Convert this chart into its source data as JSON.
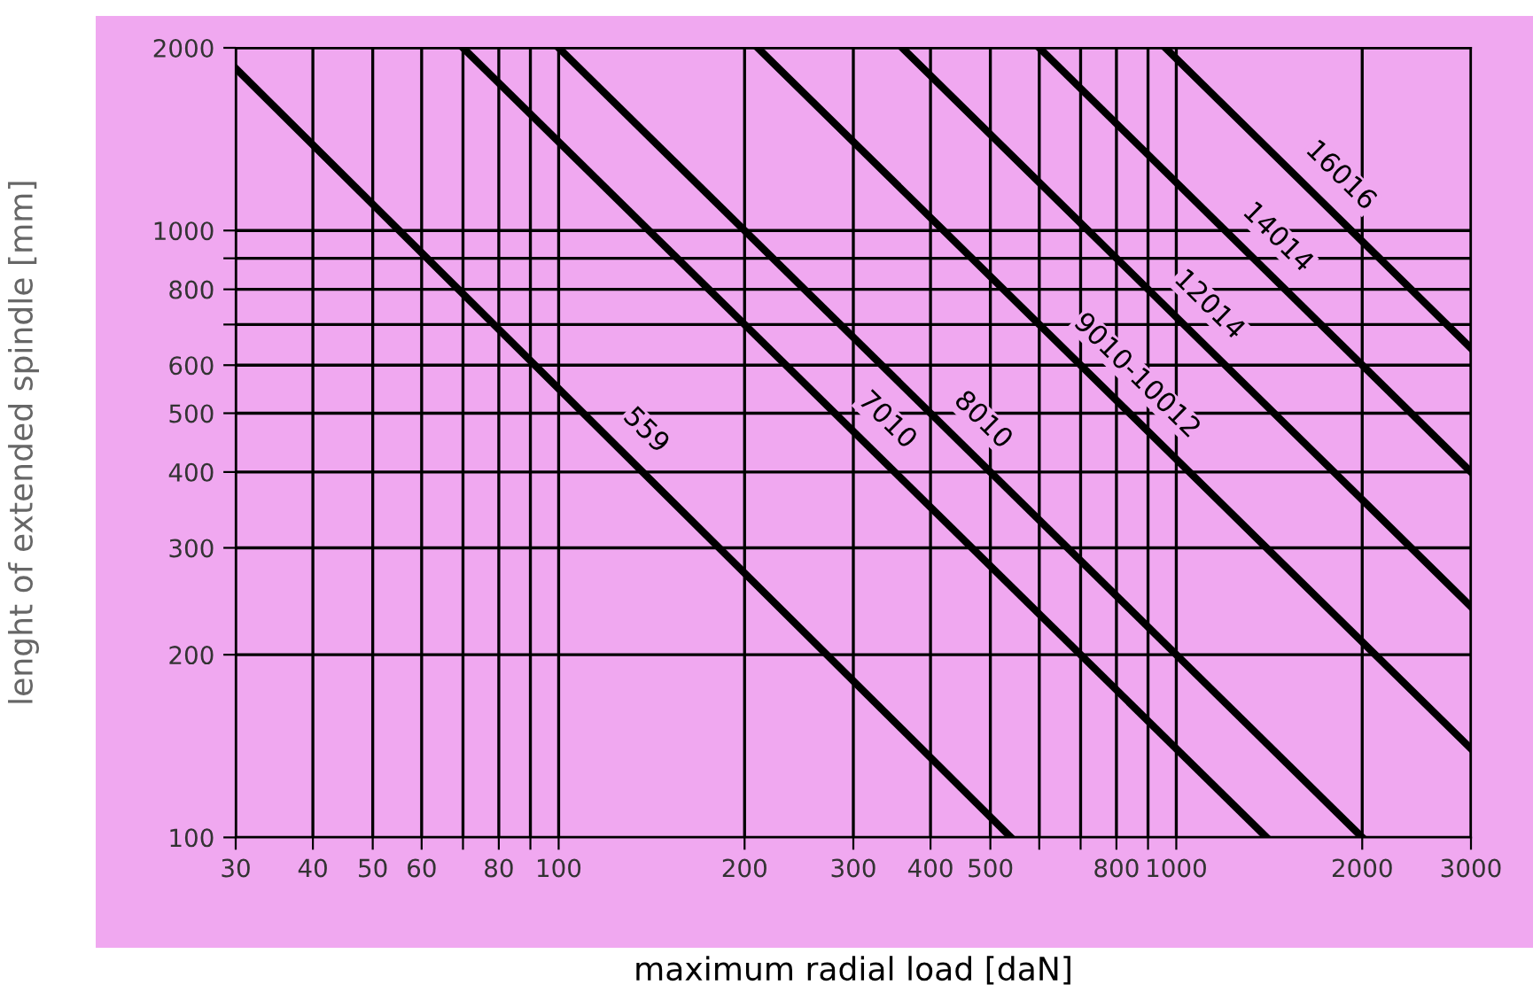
{
  "chart_data": {
    "type": "line",
    "xlabel": "maximum radial load [daN]",
    "ylabel": "lenght of extended spindle [mm]",
    "log": "xy",
    "xlim": [
      30,
      3000
    ],
    "ylim": [
      100,
      2000
    ],
    "xticks": [
      30,
      40,
      50,
      60,
      {
        "value": 70,
        "label": null
      },
      80,
      {
        "value": 90,
        "label": null
      },
      100,
      200,
      300,
      400,
      500,
      {
        "value": 600,
        "label": null
      },
      {
        "value": 700,
        "label": null
      },
      800,
      {
        "value": 900,
        "label": null
      },
      1000,
      2000,
      3000
    ],
    "yticks": [
      100,
      200,
      300,
      400,
      500,
      600,
      {
        "value": 700,
        "label": null
      },
      800,
      {
        "value": 900,
        "label": null
      },
      1000,
      2000
    ],
    "grid": true,
    "legend": false,
    "marker": "none",
    "line_style": "solid",
    "series": [
      {
        "name": "559",
        "color": "#000000",
        "x": [
          30,
          540
        ],
        "values": [
          1850,
          100
        ]
      },
      {
        "name": "7010",
        "color": "#000000",
        "x": [
          70,
          1400
        ],
        "values": [
          2000,
          100
        ]
      },
      {
        "name": "8010",
        "color": "#000000",
        "x": [
          100,
          2000
        ],
        "values": [
          2000,
          100
        ]
      },
      {
        "name": "9010-10012",
        "color": "#000000",
        "x": [
          210,
          3000
        ],
        "values": [
          2000,
          140
        ]
      },
      {
        "name": "12014",
        "color": "#000000",
        "x": [
          360,
          3000
        ],
        "values": [
          2000,
          240
        ]
      },
      {
        "name": "14014",
        "color": "#000000",
        "x": [
          600,
          3000
        ],
        "values": [
          2000,
          400
        ]
      },
      {
        "name": "16016",
        "color": "#000000",
        "x": [
          960,
          3000
        ],
        "values": [
          2000,
          640
        ]
      }
    ]
  }
}
